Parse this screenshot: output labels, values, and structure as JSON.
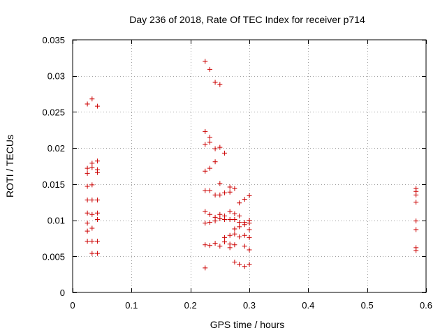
{
  "chart_data": {
    "type": "scatter",
    "title": "Day 236 of 2018, Rate Of TEC Index for receiver p714",
    "xlabel": "GPS time / hours",
    "ylabel": "ROTI / TECUs",
    "xlim": [
      0,
      0.6
    ],
    "ylim": [
      0,
      0.035
    ],
    "x_ticks": [
      {
        "value": 0,
        "label": "0"
      },
      {
        "value": 0.1,
        "label": "0.1"
      },
      {
        "value": 0.2,
        "label": "0.2"
      },
      {
        "value": 0.3,
        "label": "0.3"
      },
      {
        "value": 0.4,
        "label": "0.4"
      },
      {
        "value": 0.5,
        "label": "0.5"
      },
      {
        "value": 0.6,
        "label": "0.6"
      }
    ],
    "y_ticks": [
      {
        "value": 0,
        "label": "0"
      },
      {
        "value": 0.005,
        "label": "0.005"
      },
      {
        "value": 0.01,
        "label": "0.01"
      },
      {
        "value": 0.015,
        "label": "0.015"
      },
      {
        "value": 0.02,
        "label": "0.02"
      },
      {
        "value": 0.025,
        "label": "0.025"
      },
      {
        "value": 0.03,
        "label": "0.03"
      },
      {
        "value": 0.035,
        "label": "0.035"
      }
    ],
    "grid": true,
    "marker_color": "#cc0000",
    "marker": "plus",
    "series": [
      {
        "name": "ROTI",
        "points": [
          [
            0.025,
            0.0261
          ],
          [
            0.033,
            0.0268
          ],
          [
            0.042,
            0.0258
          ],
          [
            0.025,
            0.0172
          ],
          [
            0.025,
            0.0165
          ],
          [
            0.033,
            0.0179
          ],
          [
            0.033,
            0.0173
          ],
          [
            0.042,
            0.0182
          ],
          [
            0.042,
            0.017
          ],
          [
            0.042,
            0.0166
          ],
          [
            0.025,
            0.0147
          ],
          [
            0.033,
            0.0149
          ],
          [
            0.025,
            0.0128
          ],
          [
            0.033,
            0.0128
          ],
          [
            0.042,
            0.0128
          ],
          [
            0.025,
            0.011
          ],
          [
            0.033,
            0.0108
          ],
          [
            0.042,
            0.011
          ],
          [
            0.042,
            0.0101
          ],
          [
            0.025,
            0.0096
          ],
          [
            0.025,
            0.0085
          ],
          [
            0.033,
            0.0089
          ],
          [
            0.025,
            0.0071
          ],
          [
            0.033,
            0.0071
          ],
          [
            0.042,
            0.0071
          ],
          [
            0.033,
            0.0054
          ],
          [
            0.042,
            0.0054
          ],
          [
            0.225,
            0.032
          ],
          [
            0.233,
            0.0309
          ],
          [
            0.242,
            0.0291
          ],
          [
            0.25,
            0.0288
          ],
          [
            0.225,
            0.0223
          ],
          [
            0.233,
            0.0215
          ],
          [
            0.233,
            0.0208
          ],
          [
            0.225,
            0.0205
          ],
          [
            0.242,
            0.0199
          ],
          [
            0.25,
            0.0201
          ],
          [
            0.258,
            0.0193
          ],
          [
            0.242,
            0.0181
          ],
          [
            0.225,
            0.0168
          ],
          [
            0.233,
            0.0172
          ],
          [
            0.25,
            0.0151
          ],
          [
            0.225,
            0.0141
          ],
          [
            0.233,
            0.0141
          ],
          [
            0.242,
            0.0135
          ],
          [
            0.25,
            0.0135
          ],
          [
            0.258,
            0.0138
          ],
          [
            0.267,
            0.0146
          ],
          [
            0.267,
            0.0139
          ],
          [
            0.275,
            0.0144
          ],
          [
            0.283,
            0.0124
          ],
          [
            0.292,
            0.0129
          ],
          [
            0.3,
            0.0134
          ],
          [
            0.225,
            0.0112
          ],
          [
            0.233,
            0.0108
          ],
          [
            0.242,
            0.0104
          ],
          [
            0.25,
            0.0108
          ],
          [
            0.25,
            0.0102
          ],
          [
            0.258,
            0.0106
          ],
          [
            0.267,
            0.0112
          ],
          [
            0.275,
            0.0109
          ],
          [
            0.283,
            0.0106
          ],
          [
            0.225,
            0.0096
          ],
          [
            0.233,
            0.0097
          ],
          [
            0.242,
            0.0099
          ],
          [
            0.258,
            0.0101
          ],
          [
            0.267,
            0.0101
          ],
          [
            0.275,
            0.0101
          ],
          [
            0.283,
            0.0097
          ],
          [
            0.292,
            0.0094
          ],
          [
            0.292,
            0.0097
          ],
          [
            0.3,
            0.01
          ],
          [
            0.3,
            0.0096
          ],
          [
            0.275,
            0.0088
          ],
          [
            0.283,
            0.0091
          ],
          [
            0.3,
            0.0087
          ],
          [
            0.258,
            0.0076
          ],
          [
            0.267,
            0.0079
          ],
          [
            0.275,
            0.0081
          ],
          [
            0.283,
            0.0077
          ],
          [
            0.292,
            0.0079
          ],
          [
            0.3,
            0.0076
          ],
          [
            0.225,
            0.0066
          ],
          [
            0.233,
            0.0065
          ],
          [
            0.242,
            0.0068
          ],
          [
            0.25,
            0.0064
          ],
          [
            0.258,
            0.007
          ],
          [
            0.267,
            0.0067
          ],
          [
            0.267,
            0.0062
          ],
          [
            0.275,
            0.0066
          ],
          [
            0.292,
            0.0064
          ],
          [
            0.3,
            0.0059
          ],
          [
            0.275,
            0.0042
          ],
          [
            0.283,
            0.0039
          ],
          [
            0.292,
            0.0036
          ],
          [
            0.3,
            0.0039
          ],
          [
            0.225,
            0.0034
          ],
          [
            0.583,
            0.0144
          ],
          [
            0.583,
            0.014
          ],
          [
            0.583,
            0.0135
          ],
          [
            0.583,
            0.0125
          ],
          [
            0.583,
            0.0099
          ],
          [
            0.583,
            0.0087
          ],
          [
            0.583,
            0.0062
          ],
          [
            0.583,
            0.0058
          ]
        ]
      }
    ]
  }
}
